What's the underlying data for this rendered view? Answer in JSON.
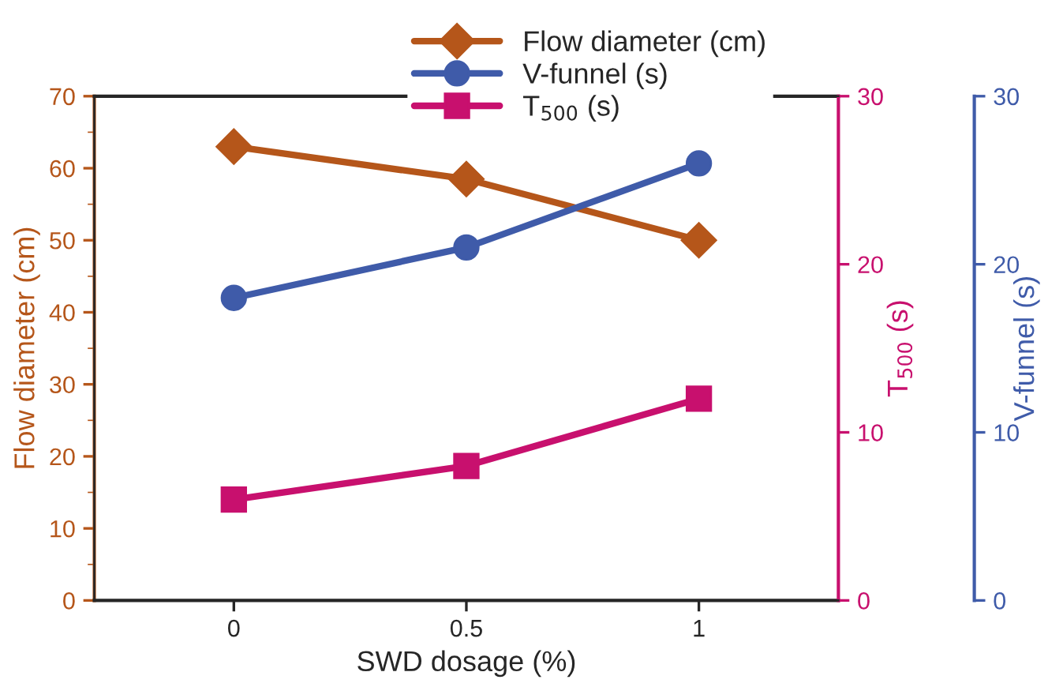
{
  "chart_data": {
    "type": "line",
    "xlabel": "SWD dosage (%)",
    "ylabel": "Flow diameter (cm)",
    "y2label": "T$_{500}$ (s)",
    "y3label": "V-funnel (s)",
    "x": [
      0,
      0.5,
      1
    ],
    "xlim": [
      -0.3,
      1.3
    ],
    "xticks": [
      0,
      0.5,
      1
    ],
    "ylim": [
      0,
      70
    ],
    "yticks": [
      0,
      10,
      20,
      30,
      40,
      50,
      60,
      70
    ],
    "y2lim": [
      0,
      30
    ],
    "y2ticks": [
      0,
      10,
      20,
      30
    ],
    "y3lim": [
      0,
      30
    ],
    "y3ticks": [
      0,
      10,
      20,
      30
    ],
    "grid": false,
    "legend": "top right",
    "line_style": "solid",
    "series": [
      {
        "name": "Flow diameter (cm)",
        "color": "#b5561a",
        "marker": "diamond",
        "values": [
          63,
          58.5,
          50
        ]
      },
      {
        "name": "V-funnel (s)",
        "color": "#3f5ba9",
        "marker": "circle",
        "axis": "y3",
        "values": [
          18,
          21,
          26
        ]
      },
      {
        "name": "T$_{500}$ (s)",
        "color": "#c8106e",
        "marker": "square",
        "axis": "y2",
        "values": [
          6,
          8,
          12
        ]
      }
    ]
  }
}
